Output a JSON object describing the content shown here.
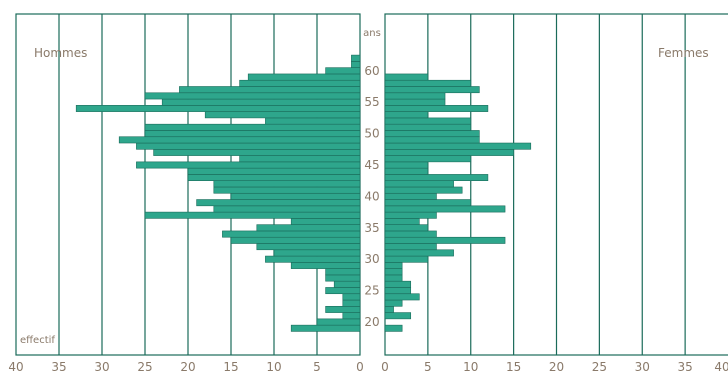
{
  "chart_data": {
    "type": "bar",
    "orientation": "horizontal-pyramid",
    "left_label": "Hommes",
    "right_label": "Femmes",
    "y_unit_label": "ans",
    "x_unit_label": "effectif",
    "x_ticks": [
      0,
      5,
      10,
      15,
      20,
      25,
      30,
      35,
      40
    ],
    "y_ticks": [
      20,
      25,
      30,
      35,
      40,
      45,
      50,
      55,
      60
    ],
    "xlim": [
      0,
      40
    ],
    "ylim": [
      18,
      63
    ],
    "colors": {
      "bar": "#2ea68c",
      "bar_edge": "#1a6b5a",
      "axis": "#1a6b5a",
      "text": "#8a7a6a"
    },
    "ages": [
      19,
      20,
      21,
      22,
      23,
      24,
      25,
      26,
      27,
      28,
      29,
      30,
      31,
      32,
      33,
      34,
      35,
      36,
      37,
      38,
      39,
      40,
      41,
      42,
      43,
      44,
      45,
      46,
      47,
      48,
      49,
      50,
      51,
      52,
      53,
      54,
      55,
      56,
      57,
      58,
      59,
      60,
      61,
      62
    ],
    "series": [
      {
        "name": "Hommes",
        "values": [
          8,
          5,
          2,
          4,
          2,
          2,
          4,
          3,
          4,
          4,
          8,
          11,
          10,
          12,
          15,
          16,
          12,
          8,
          25,
          17,
          19,
          15,
          17,
          17,
          20,
          20,
          26,
          14,
          24,
          26,
          28,
          25,
          25,
          11,
          18,
          33,
          23,
          25,
          21,
          14,
          13,
          4,
          1,
          1
        ]
      },
      {
        "name": "Femmes",
        "values": [
          2,
          0,
          3,
          1,
          2,
          4,
          3,
          3,
          2,
          2,
          2,
          5,
          8,
          6,
          14,
          6,
          5,
          4,
          6,
          14,
          10,
          6,
          9,
          8,
          12,
          5,
          5,
          10,
          15,
          17,
          11,
          11,
          10,
          10,
          5,
          12,
          7,
          7,
          11,
          10,
          5,
          0,
          0,
          0
        ]
      }
    ]
  }
}
